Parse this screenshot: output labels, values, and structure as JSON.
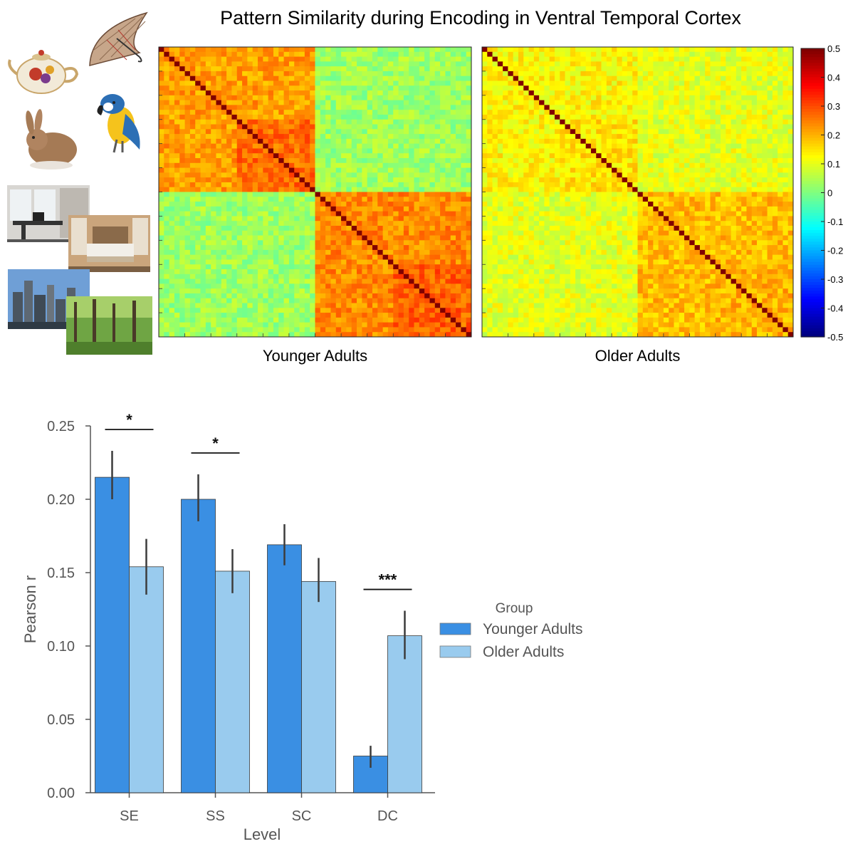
{
  "figure": {
    "title": "Pattern Similarity during Encoding in Ventral Temporal Cortex"
  },
  "stimuli": [
    {
      "name": "teapot-image",
      "kind": "teapot"
    },
    {
      "name": "umbrella-image",
      "kind": "umbrella"
    },
    {
      "name": "rabbit-image",
      "kind": "rabbit"
    },
    {
      "name": "parrot-image",
      "kind": "parrot"
    },
    {
      "name": "office-image",
      "kind": "office"
    },
    {
      "name": "bedroom-image",
      "kind": "bedroom"
    },
    {
      "name": "city-image",
      "kind": "city"
    },
    {
      "name": "forest-image",
      "kind": "forest"
    }
  ],
  "chart_data": [
    {
      "type": "heatmap",
      "title": "Pattern Similarity during Encoding in Ventral Temporal Cortex",
      "panels": [
        {
          "label": "Younger Adults",
          "blocks": {
            "objects_within": 0.22,
            "objects_subblock": 0.27,
            "scenes_within": 0.24,
            "scenes_subblock": 0.28,
            "between": 0.03,
            "diagonal": 0.5
          }
        },
        {
          "label": "Older Adults",
          "blocks": {
            "objects_within": 0.13,
            "objects_subblock": 0.15,
            "scenes_within": 0.19,
            "scenes_subblock": 0.2,
            "between": 0.1,
            "diagonal": 0.5
          }
        }
      ],
      "colorbar": {
        "min": -0.5,
        "max": 0.5,
        "ticks": [
          "0.5",
          "0.4",
          "0.3",
          "0.2",
          "0.1",
          "0",
          "-0.1",
          "-0.2",
          "-0.3",
          "-0.4",
          "-0.5"
        ]
      }
    },
    {
      "type": "bar",
      "categories": [
        "SE",
        "SS",
        "SC",
        "DC"
      ],
      "series": [
        {
          "name": "Younger Adults",
          "values": [
            0.215,
            0.2,
            0.169,
            0.025
          ],
          "err_low": [
            0.2,
            0.185,
            0.155,
            0.017
          ],
          "err_high": [
            0.233,
            0.217,
            0.183,
            0.032
          ],
          "color": "#3a8fe3"
        },
        {
          "name": "Older Adults",
          "values": [
            0.154,
            0.151,
            0.144,
            0.107
          ],
          "err_low": [
            0.135,
            0.136,
            0.13,
            0.091
          ],
          "err_high": [
            0.173,
            0.166,
            0.16,
            0.124
          ],
          "color": "#99cbee"
        }
      ],
      "xlabel": "Level",
      "ylabel": "Pearson r",
      "ylim": [
        0,
        0.25
      ],
      "yticks": [
        "0.00",
        "0.05",
        "0.10",
        "0.15",
        "0.20",
        "0.25"
      ],
      "significance": [
        {
          "category": "SE",
          "label": "*"
        },
        {
          "category": "SS",
          "label": "*"
        },
        {
          "category": "DC",
          "label": "***"
        }
      ],
      "legend": {
        "title": "Group",
        "position": "right"
      }
    }
  ]
}
